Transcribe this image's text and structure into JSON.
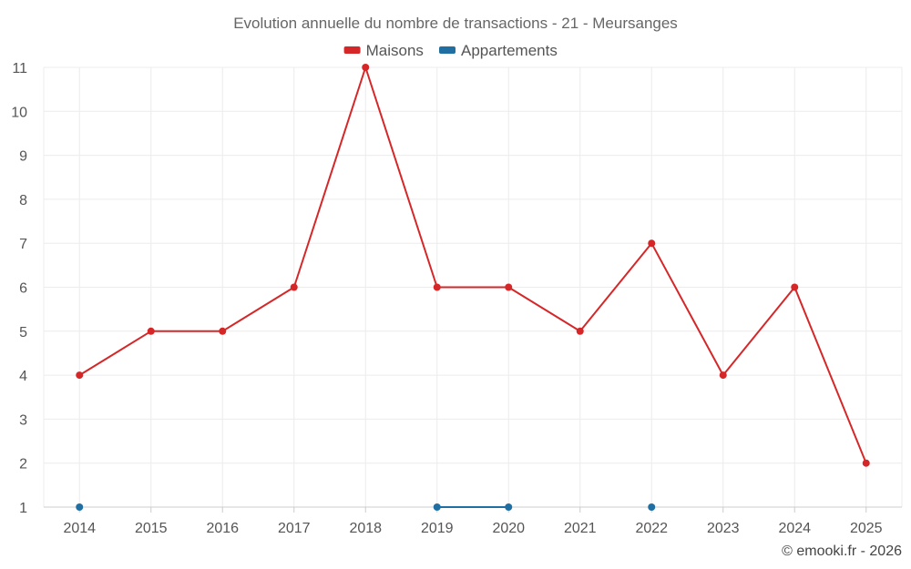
{
  "chart_data": {
    "type": "line",
    "title": "Evolution annuelle du nombre de transactions - 21 - Meursanges",
    "x": [
      "2014",
      "2015",
      "2016",
      "2017",
      "2018",
      "2019",
      "2020",
      "2021",
      "2022",
      "2023",
      "2024",
      "2025"
    ],
    "ylim": [
      1,
      11
    ],
    "yticks": [
      "1",
      "2",
      "3",
      "4",
      "5",
      "6",
      "7",
      "8",
      "9",
      "10",
      "11"
    ],
    "grid": true,
    "legend_position": "top-center",
    "series": [
      {
        "name": "Maisons",
        "color": "#d62728",
        "values": [
          4,
          5,
          5,
          6,
          11,
          6,
          6,
          5,
          7,
          4,
          6,
          2
        ]
      },
      {
        "name": "Appartements",
        "color": "#1f6fa3",
        "values": [
          1,
          null,
          null,
          null,
          null,
          1,
          1,
          null,
          1,
          null,
          null,
          null
        ]
      }
    ]
  },
  "credit": "© emooki.fr - 2026"
}
